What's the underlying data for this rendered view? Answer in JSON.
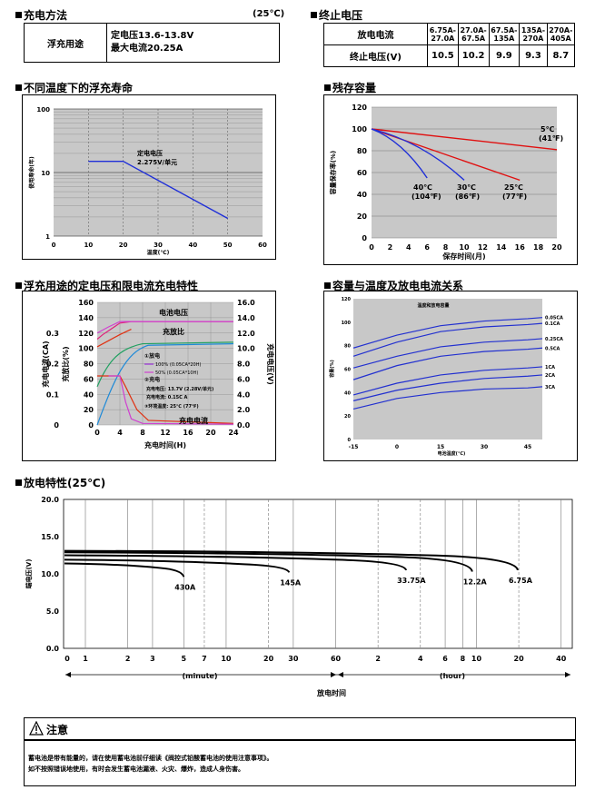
{
  "charge": {
    "title": "充电方法",
    "temp": "(25℃)",
    "row_label": "浮充用途",
    "line1": "定电压13.6-13.8V",
    "line2": "最大电流20.25A"
  },
  "cutoff": {
    "title": "终止电压",
    "header_label": "放电电流",
    "row_label": "终止电压(V)",
    "columns": [
      "6.75A-\n27.0A",
      "27.0A-\n67.5A",
      "67.5A-\n135A",
      "135A-\n270A",
      "270A-\n405A"
    ],
    "values": [
      "10.5",
      "10.2",
      "9.9",
      "9.3",
      "8.7"
    ]
  },
  "float_life": {
    "title": "不同温度下的浮充寿命",
    "ylabel": "使用寿命(年)",
    "xlabel": "温度(℃)",
    "annot1": "定电电压",
    "annot2": "2.275V/单元",
    "chart_data": {
      "type": "line",
      "x_ticks": [
        "0",
        "10",
        "20",
        "30",
        "40",
        "50",
        "60"
      ],
      "y_ticks": [
        "100",
        "10",
        "1"
      ],
      "xlim": [
        0,
        60
      ],
      "ylim": [
        1,
        100
      ],
      "y_scale": "log",
      "grid": true,
      "series": [
        {
          "x": [
            10,
            20,
            50
          ],
          "y": [
            15,
            15,
            1.9
          ]
        }
      ]
    }
  },
  "residual": {
    "title": "残存容量",
    "ylabel": "容量保存率(%)",
    "xlabel": "保存时间(月)",
    "chart_data": {
      "type": "line",
      "x_ticks": [
        "0",
        "2",
        "4",
        "6",
        "8",
        "10",
        "12",
        "14",
        "16",
        "18",
        "20"
      ],
      "y_ticks": [
        "0",
        "20",
        "40",
        "60",
        "80",
        "100",
        "120"
      ],
      "xlim": [
        0,
        20
      ],
      "ylim": [
        0,
        120
      ],
      "grid": true,
      "series": [
        {
          "name": "5℃",
          "sub": "(41℉)",
          "x": [
            0,
            20
          ],
          "y": [
            100,
            81
          ]
        },
        {
          "name": "25℃",
          "sub": "(77℉)",
          "x": [
            0,
            16
          ],
          "y": [
            100,
            53
          ]
        },
        {
          "name": "30℃",
          "sub": "(86℉)",
          "x": [
            0,
            10
          ],
          "y": [
            100,
            53
          ]
        },
        {
          "name": "40℃",
          "sub": "(104℉)",
          "x": [
            0,
            6
          ],
          "y": [
            100,
            55
          ]
        }
      ]
    }
  },
  "float_char": {
    "title": "浮充用途的定电压和限电流充电特性",
    "left_label_1": "充电电流(CA)",
    "left_label_2": "充放比(%)",
    "right_label": "充电电压(V)",
    "xlabel": "充电时间(H)",
    "label_voltage": "电池电压",
    "label_ratio": "充放比",
    "label_current": "充电电流",
    "legend": {
      "discharge": "①放电",
      "d100": "100% (0.05CA*20H)",
      "d50": "50% (0.05CA*10H)",
      "charge": "②充电",
      "cv": "充电电压: 13.7V (2.28V/单元)",
      "cc": "充电电流: 0.15C A",
      "temp": "③环境温度: 25℃ (77℉)"
    },
    "chart_data": {
      "type": "line",
      "x_ticks": [
        "0",
        "4",
        "8",
        "12",
        "16",
        "20",
        "24"
      ],
      "y_ticks_ratio": [
        "0",
        "20",
        "40",
        "60",
        "80",
        "100",
        "120",
        "140",
        "160"
      ],
      "y_ticks_current": [
        "0",
        "0.1",
        "0.2",
        "0.3"
      ],
      "y_ticks_voltage": [
        "0.0",
        "2.0",
        "4.0",
        "6.0",
        "8.0",
        "10.0",
        "12.0",
        "14.0",
        "16.0"
      ],
      "xlim": [
        0,
        24
      ],
      "grid": true
    }
  },
  "capacity_temp": {
    "title": "容量与温度及放电电流关系",
    "inner_title": "温度和放电容量",
    "ylabel": "容量(%)",
    "xlabel": "电池温度(℃)",
    "chart_data": {
      "type": "line",
      "x_ticks": [
        "-15",
        "0",
        "15",
        "30",
        "45"
      ],
      "y_ticks": [
        "0",
        "20",
        "40",
        "60",
        "80",
        "100",
        "120"
      ],
      "xlim": [
        -15,
        50
      ],
      "ylim": [
        0,
        120
      ],
      "series": [
        {
          "name": "0.05CA",
          "x": [
            -15,
            0,
            15,
            30,
            45,
            50
          ],
          "y": [
            78,
            89,
            97,
            101,
            103,
            104
          ]
        },
        {
          "name": "0.1CA",
          "x": [
            -15,
            0,
            15,
            30,
            45,
            50
          ],
          "y": [
            71,
            83,
            92,
            96,
            98,
            99
          ]
        },
        {
          "name": "0.25CA",
          "x": [
            -15,
            0,
            15,
            30,
            45,
            50
          ],
          "y": [
            61,
            71,
            79,
            83,
            85,
            86
          ]
        },
        {
          "name": "0.5CA",
          "x": [
            -15,
            0,
            15,
            30,
            45,
            50
          ],
          "y": [
            51,
            63,
            71,
            75,
            77,
            78
          ]
        },
        {
          "name": "1CA",
          "x": [
            -15,
            0,
            15,
            30,
            45,
            50
          ],
          "y": [
            38,
            48,
            55,
            59,
            61,
            62
          ]
        },
        {
          "name": "2CA",
          "x": [
            -15,
            0,
            15,
            30,
            45,
            50
          ],
          "y": [
            33,
            42,
            48,
            52,
            54,
            55
          ]
        },
        {
          "name": "3CA",
          "x": [
            -15,
            0,
            15,
            30,
            45,
            50
          ],
          "y": [
            26,
            35,
            40,
            43,
            44,
            45
          ]
        }
      ]
    }
  },
  "discharge": {
    "title": "放电特性(25℃)",
    "ylabel": "端电压(V)",
    "xlabel": "放电时间",
    "minute": "(minute)",
    "hour": "(hour)",
    "chart_data": {
      "type": "line",
      "y_ticks": [
        "0.0",
        "5.0",
        "10.0",
        "15.0",
        "20.0"
      ],
      "ylim": [
        0,
        20
      ],
      "x_ticks_min": [
        "0",
        "1",
        "2",
        "3",
        "5",
        "7",
        "10",
        "20",
        "30",
        "60"
      ],
      "x_ticks_hour": [
        "2",
        "4",
        "6",
        "8",
        "10",
        "20",
        "40"
      ],
      "series": [
        {
          "name": "430A",
          "end_min": 5,
          "v_start": 11.4,
          "v_end": 9.6
        },
        {
          "name": "145A",
          "end_min": 28,
          "v_start": 11.9,
          "v_end": 10.2
        },
        {
          "name": "33.75A",
          "end_min": 190,
          "v_start": 12.5,
          "v_end": 10.5
        },
        {
          "name": "12.2A",
          "end_min": 560,
          "v_start": 12.9,
          "v_end": 10.3
        },
        {
          "name": "6.75A",
          "end_min": 1180,
          "v_start": 13.1,
          "v_end": 10.5
        }
      ]
    }
  },
  "notice": {
    "title": "注意",
    "line1": "蓄电池是带有能量的，请在使用蓄电池前仔细读《阀控式铅酸蓄电池的使用注意事项》。",
    "line2": "如不按照错误地使用，有时会发生蓄电池漏液、火灾、爆炸，造成人身伤害。"
  }
}
